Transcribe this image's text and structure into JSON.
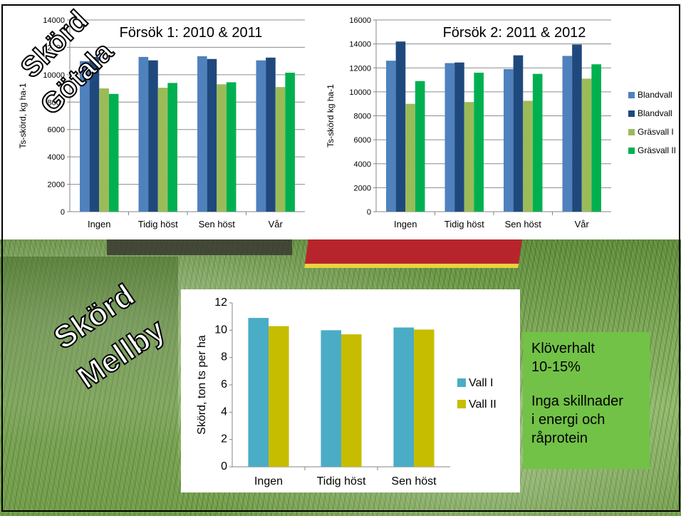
{
  "slide": {
    "wordart_top": "Skörd Götala",
    "wordart_top_line1": "Skörd",
    "wordart_top_line2": "Götala",
    "wordart_bottom_line1": "Skörd",
    "wordart_bottom_line2": "Mellby",
    "info_box": {
      "line1": "Klöverhalt",
      "line2": "10-15%",
      "line3": "Inga skillnader",
      "line4": "i energi och",
      "line5": "råprotein"
    }
  },
  "colors": {
    "blandvall_light": "#4f81bd",
    "blandvall_dark": "#1f497d",
    "grasvall_1": "#9bbb59",
    "grasvall_2": "#00b050",
    "vall_1": "#4bacc6",
    "vall_2": "#c6bd00",
    "info_box": "#72c247"
  },
  "chart_data": [
    {
      "id": "forsok1",
      "type": "bar",
      "title": "Försök 1: 2010 & 2011",
      "ylabel": "Ts-skörd, kg ha-1",
      "ylim": [
        0,
        14000
      ],
      "yticks": [
        0,
        2000,
        4000,
        6000,
        8000,
        10000,
        12000,
        14000
      ],
      "categories": [
        "Ingen",
        "Tidig höst",
        "Sen höst",
        "Vår"
      ],
      "series": [
        {
          "values": [
            11000,
            11300,
            11350,
            11050
          ]
        },
        {
          "values": [
            11300,
            11050,
            11150,
            11250
          ]
        },
        {
          "values": [
            9000,
            9050,
            9300,
            9100
          ]
        },
        {
          "values": [
            8600,
            9400,
            9450,
            10150
          ]
        }
      ]
    },
    {
      "id": "forsok2",
      "type": "bar",
      "title": "Försök 2: 2011 & 2012",
      "ylabel": "Ts-skörd kg ha-1",
      "ylim": [
        0,
        16000
      ],
      "yticks": [
        0,
        2000,
        4000,
        6000,
        8000,
        10000,
        12000,
        14000,
        16000
      ],
      "categories": [
        "Ingen",
        "Tidig höst",
        "Sen höst",
        "Vår"
      ],
      "legend_position": "right",
      "series": [
        {
          "name": "Blandvall",
          "values": [
            12600,
            12400,
            11900,
            13000
          ]
        },
        {
          "name": "Blandvall",
          "values": [
            14200,
            12450,
            13050,
            13950
          ]
        },
        {
          "name": "Gräsvall I",
          "values": [
            9000,
            9150,
            9250,
            11100
          ]
        },
        {
          "name": "Gräsvall II",
          "values": [
            10900,
            11600,
            11500,
            12300
          ]
        }
      ]
    },
    {
      "id": "mellby",
      "type": "bar",
      "ylabel": "Skörd, ton ts per ha",
      "ylim": [
        0,
        12
      ],
      "yticks": [
        0,
        2,
        4,
        6,
        8,
        10,
        12
      ],
      "categories": [
        "Ingen",
        "Tidig höst",
        "Sen höst"
      ],
      "legend_position": "right",
      "series": [
        {
          "name": "Vall I",
          "values": [
            10.9,
            10.0,
            10.2
          ]
        },
        {
          "name": "Vall II",
          "values": [
            10.3,
            9.7,
            10.05
          ]
        }
      ]
    }
  ]
}
